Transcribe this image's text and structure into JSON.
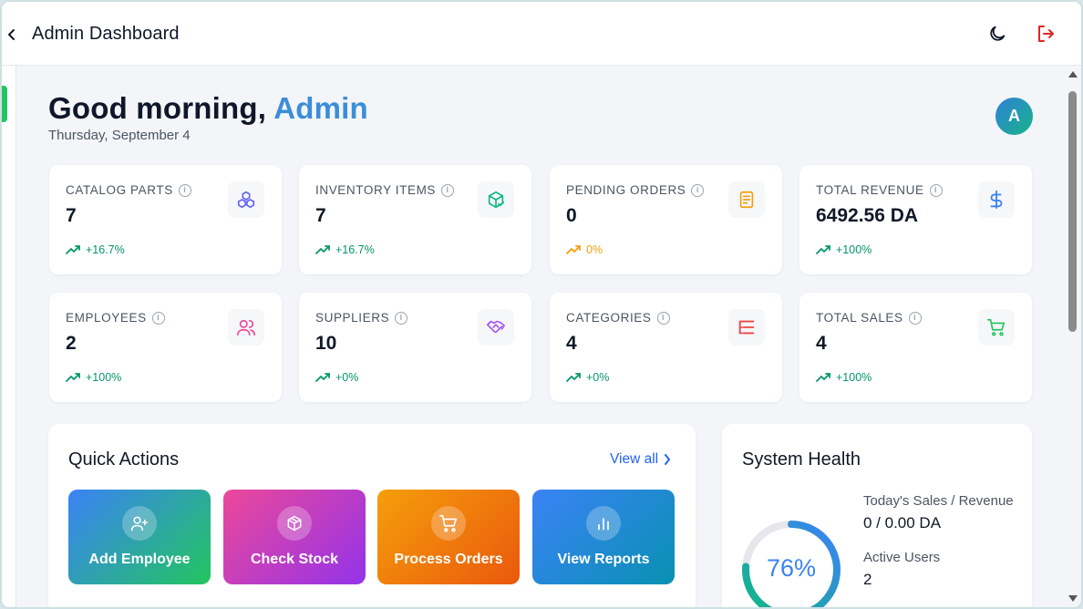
{
  "header": {
    "title": "Admin Dashboard",
    "back_icon": "chevron-left-icon",
    "theme_icon": "moon-icon",
    "logout_icon": "logout-icon"
  },
  "greeting": {
    "prefix": "Good morning, ",
    "name": "Admin",
    "date": "Thursday, September 4",
    "avatar_initial": "A"
  },
  "stats": [
    {
      "label": "CATALOG PARTS",
      "value": "7",
      "trend": "+16.7%",
      "trend_color": "#059669",
      "icon": "cubes-icon",
      "icon_color": "#6366f1"
    },
    {
      "label": "INVENTORY ITEMS",
      "value": "7",
      "trend": "+16.7%",
      "trend_color": "#059669",
      "icon": "package-check-icon",
      "icon_color": "#10b981"
    },
    {
      "label": "PENDING ORDERS",
      "value": "0",
      "trend": "0%",
      "trend_color": "#f59e0b",
      "icon": "document-icon",
      "icon_color": "#f59e0b"
    },
    {
      "label": "TOTAL REVENUE",
      "value": "6492.56 DA",
      "trend": "+100%",
      "trend_color": "#059669",
      "icon": "dollar-icon",
      "icon_color": "#3b82f6"
    },
    {
      "label": "EMPLOYEES",
      "value": "2",
      "trend": "+100%",
      "trend_color": "#059669",
      "icon": "users-icon",
      "icon_color": "#ec4899"
    },
    {
      "label": "SUPPLIERS",
      "value": "10",
      "trend": "+0%",
      "trend_color": "#059669",
      "icon": "handshake-icon",
      "icon_color": "#a855f7"
    },
    {
      "label": "CATEGORIES",
      "value": "4",
      "trend": "+0%",
      "trend_color": "#059669",
      "icon": "list-tree-icon",
      "icon_color": "#ef4444"
    },
    {
      "label": "TOTAL SALES",
      "value": "4",
      "trend": "+100%",
      "trend_color": "#059669",
      "icon": "cart-icon",
      "icon_color": "#22c55e"
    }
  ],
  "quick_actions": {
    "title": "Quick Actions",
    "view_all": "View all",
    "items": [
      {
        "label": "Add Employee",
        "icon": "user-plus-icon",
        "gradient": [
          "#3b82f6",
          "#22c55e"
        ]
      },
      {
        "label": "Check Stock",
        "icon": "box-icon",
        "gradient": [
          "#ec4899",
          "#9333ea"
        ]
      },
      {
        "label": "Process Orders",
        "icon": "cart-icon",
        "gradient": [
          "#f59e0b",
          "#ea580c"
        ]
      },
      {
        "label": "View Reports",
        "icon": "bar-chart-icon",
        "gradient": [
          "#3b82f6",
          "#0891b2"
        ]
      }
    ]
  },
  "system_health": {
    "title": "System Health",
    "percent": 76,
    "percent_label": "76%",
    "sales_label": "Today's Sales / Revenue",
    "sales_value": "0 / 0.00 DA",
    "users_label": "Active Users",
    "users_value": "2"
  }
}
